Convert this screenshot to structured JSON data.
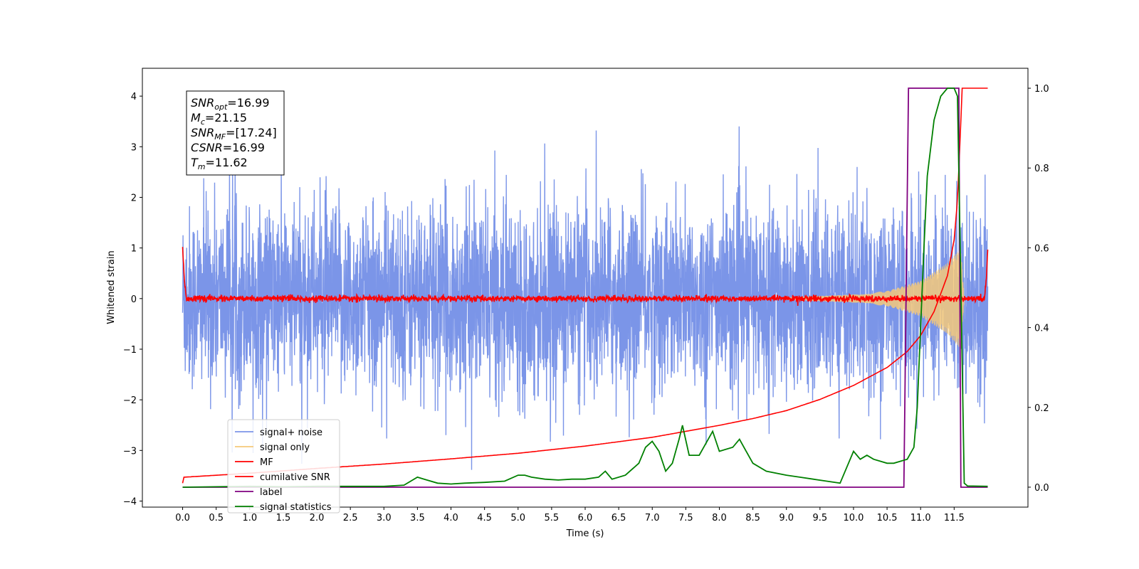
{
  "chart_data": {
    "type": "line",
    "xlabel": "Time (s)",
    "ylabel": "Whitened strain",
    "xlim": [
      -0.6,
      12.6
    ],
    "ylim": [
      -4.12,
      4.55
    ],
    "ylim_right": [
      -0.05,
      1.05
    ],
    "x_ticks": [
      "0.0",
      "0.5",
      "1.0",
      "1.5",
      "2.0",
      "2.5",
      "3.0",
      "3.5",
      "4.0",
      "4.5",
      "5.0",
      "5.5",
      "6.0",
      "6.5",
      "7.0",
      "7.5",
      "8.0",
      "8.5",
      "9.0",
      "9.5",
      "10.0",
      "10.5",
      "11.0",
      "11.5"
    ],
    "y_ticks_left": [
      "4",
      "3",
      "2",
      "1",
      "0",
      "−1",
      "−2",
      "−3",
      "−4"
    ],
    "y_ticks_right": [
      "1.0",
      "0.8",
      "0.6",
      "0.4",
      "0.2",
      "0.0"
    ],
    "legend_position": "lower-left",
    "annotation": {
      "snr_opt": {
        "sym": "SNR",
        "sub": "opt",
        "value": "=16.99"
      },
      "mc": {
        "sym": "M",
        "sub": "c",
        "value": "=21.15"
      },
      "snr_mf": {
        "sym": "SNR",
        "sub": "MF",
        "value": "=[17.24]"
      },
      "csnr": {
        "sym": "CSNR",
        "sub": "",
        "value": "=16.99"
      },
      "tm": {
        "sym": "T",
        "sub": "m",
        "value": "=11.62"
      }
    },
    "series": [
      {
        "name": "signal+ noise",
        "color": "#7b95e8",
        "axis": "left",
        "noise_std": 0.9,
        "x_range": [
          0.0,
          12.0
        ]
      },
      {
        "name": "signal only",
        "color": "#f5c97a",
        "axis": "left",
        "x": [
          9.0,
          10.0,
          10.5,
          11.0,
          11.4,
          11.6,
          11.65
        ],
        "amplitude": [
          0.02,
          0.08,
          0.15,
          0.35,
          0.7,
          1.0,
          0.0
        ]
      },
      {
        "name": "MF",
        "color": "#ff0000",
        "axis": "left",
        "x": [
          0.0,
          0.03,
          0.06,
          0.1,
          11.95,
          11.98,
          12.0
        ],
        "y": [
          1.0,
          0.3,
          0.0,
          0.0,
          0.0,
          0.4,
          0.97
        ]
      },
      {
        "name": "cumilative SNR",
        "color": "#ff0000",
        "axis": "right",
        "x": [
          0.0,
          0.02,
          1.0,
          2.0,
          3.0,
          4.0,
          5.0,
          6.0,
          7.0,
          8.0,
          8.5,
          9.0,
          9.5,
          10.0,
          10.5,
          10.8,
          11.0,
          11.2,
          11.4,
          11.5,
          11.55,
          11.62,
          11.7,
          12.0
        ],
        "y": [
          0.01,
          0.025,
          0.035,
          0.047,
          0.058,
          0.071,
          0.085,
          0.103,
          0.125,
          0.155,
          0.172,
          0.192,
          0.22,
          0.255,
          0.3,
          0.34,
          0.38,
          0.44,
          0.53,
          0.62,
          0.72,
          1.0,
          1.0,
          1.0
        ]
      },
      {
        "name": "label",
        "color": "#800080",
        "axis": "right",
        "x": [
          0.0,
          10.75,
          10.82,
          11.57,
          11.6,
          12.0
        ],
        "y": [
          0.0,
          0.0,
          1.0,
          1.0,
          0.0,
          0.0
        ]
      },
      {
        "name": "signal statistics",
        "color": "#008000",
        "axis": "right",
        "x": [
          0.0,
          0.5,
          1.0,
          1.5,
          2.0,
          2.5,
          3.0,
          3.3,
          3.5,
          3.6,
          3.8,
          4.0,
          4.2,
          4.5,
          4.8,
          5.0,
          5.1,
          5.2,
          5.4,
          5.6,
          5.8,
          6.0,
          6.2,
          6.3,
          6.4,
          6.6,
          6.8,
          6.9,
          7.0,
          7.1,
          7.2,
          7.3,
          7.4,
          7.45,
          7.55,
          7.7,
          7.9,
          8.0,
          8.2,
          8.3,
          8.4,
          8.5,
          8.7,
          9.0,
          9.2,
          9.4,
          9.6,
          9.8,
          10.0,
          10.1,
          10.2,
          10.3,
          10.4,
          10.5,
          10.6,
          10.7,
          10.8,
          10.9,
          10.95,
          11.0,
          11.05,
          11.1,
          11.2,
          11.3,
          11.4,
          11.5,
          11.55,
          11.6,
          11.65,
          11.7,
          12.0
        ],
        "y": [
          0.0,
          0.001,
          0.002,
          0.001,
          0.002,
          0.002,
          0.002,
          0.005,
          0.025,
          0.02,
          0.01,
          0.008,
          0.01,
          0.012,
          0.015,
          0.03,
          0.03,
          0.025,
          0.02,
          0.018,
          0.02,
          0.02,
          0.025,
          0.04,
          0.02,
          0.03,
          0.06,
          0.1,
          0.115,
          0.09,
          0.04,
          0.06,
          0.12,
          0.155,
          0.08,
          0.08,
          0.14,
          0.09,
          0.1,
          0.12,
          0.09,
          0.06,
          0.04,
          0.03,
          0.025,
          0.02,
          0.015,
          0.01,
          0.09,
          0.07,
          0.08,
          0.07,
          0.065,
          0.06,
          0.06,
          0.065,
          0.07,
          0.1,
          0.2,
          0.4,
          0.6,
          0.78,
          0.92,
          0.98,
          1.0,
          1.0,
          0.98,
          0.5,
          0.01,
          0.003,
          0.002
        ]
      }
    ]
  }
}
